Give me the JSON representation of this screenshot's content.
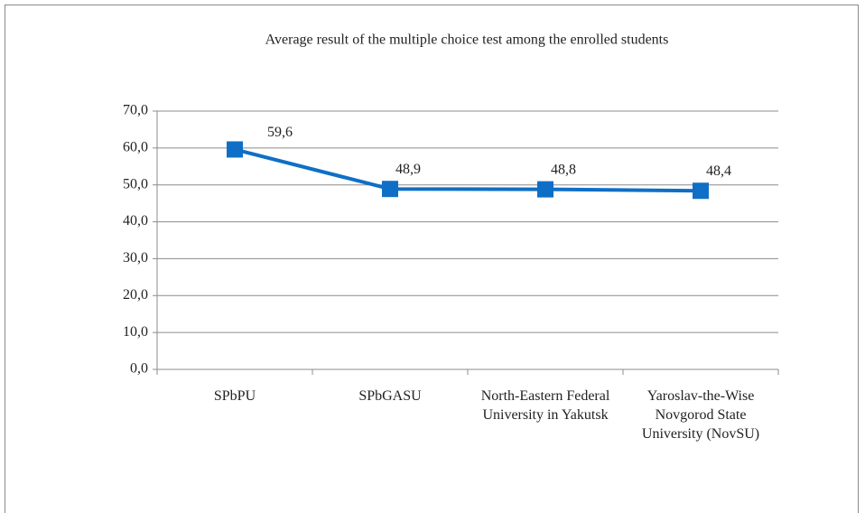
{
  "chart_data": {
    "type": "line",
    "title": "Average  result of the multiple choice test among the enrolled students",
    "categories": [
      "SPbPU",
      "SPbGASU",
      "North-Eastern Federal University in Yakutsk",
      "Yaroslav-the-Wise Novgorod State University (NovSU)"
    ],
    "series": [
      {
        "name": "Average result",
        "color": "#0f6fc6",
        "values": [
          59.6,
          48.9,
          48.8,
          48.4
        ],
        "value_labels": [
          "59,6",
          "48,9",
          "48,8",
          "48,4"
        ]
      }
    ],
    "ylim": [
      0,
      70
    ],
    "yticks": [
      {
        "value": 0,
        "label": "0,0"
      },
      {
        "value": 10,
        "label": "10,0"
      },
      {
        "value": 20,
        "label": "20,0"
      },
      {
        "value": 30,
        "label": "30,0"
      },
      {
        "value": 40,
        "label": "40,0"
      },
      {
        "value": 50,
        "label": "50,0"
      },
      {
        "value": 60,
        "label": "60,0"
      },
      {
        "value": 70,
        "label": "70,0"
      }
    ],
    "grid": true
  }
}
